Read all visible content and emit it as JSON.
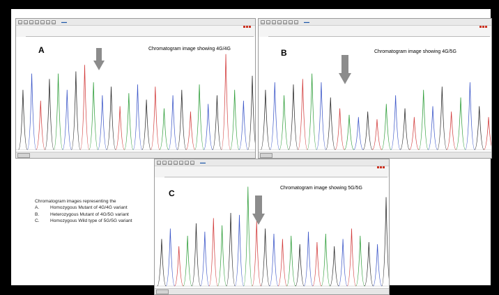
{
  "caption": {
    "intro": "Chromatogram images representing the",
    "items": [
      {
        "num": "A.",
        "text": "Homozygous Mutant of 4G/4G variant"
      },
      {
        "num": "B.",
        "text": "Heterozygous Mutant of 4G/5G variant"
      },
      {
        "num": "C.",
        "text": "Homozygous Wild type of 5G/5G variant"
      }
    ]
  },
  "panels": [
    {
      "id": "a",
      "letter": "A",
      "title": "Chromatogram image showing 4G/4G",
      "trace_colors": [
        "#2a2a2a",
        "#2f9e3a",
        "#3b56c8",
        "#d23b3b"
      ],
      "peaks": [
        [
          0,
          0.55,
          0
        ],
        [
          1,
          0.7,
          2
        ],
        [
          2,
          0.45,
          3
        ],
        [
          3,
          0.65,
          0
        ],
        [
          4,
          0.7,
          1
        ],
        [
          5,
          0.55,
          2
        ],
        [
          6,
          0.72,
          0
        ],
        [
          7,
          0.78,
          3
        ],
        [
          8,
          0.62,
          1
        ],
        [
          9,
          0.5,
          2
        ],
        [
          10,
          0.58,
          0
        ],
        [
          11,
          0.4,
          3
        ],
        [
          12,
          0.52,
          1
        ],
        [
          13,
          0.6,
          2
        ],
        [
          14,
          0.46,
          0
        ],
        [
          15,
          0.58,
          3
        ],
        [
          16,
          0.38,
          1
        ],
        [
          17,
          0.5,
          2
        ],
        [
          18,
          0.55,
          0
        ],
        [
          19,
          0.35,
          3
        ],
        [
          20,
          0.6,
          1
        ],
        [
          21,
          0.42,
          2
        ],
        [
          22,
          0.5,
          0
        ],
        [
          23,
          0.88,
          3
        ],
        [
          24,
          0.55,
          1
        ],
        [
          25,
          0.45,
          2
        ],
        [
          26,
          0.68,
          0
        ]
      ]
    },
    {
      "id": "b",
      "letter": "B",
      "title": "Chromatogram image showing 4G/5G",
      "trace_colors": [
        "#2a2a2a",
        "#2f9e3a",
        "#3b56c8",
        "#d23b3b"
      ],
      "peaks": [
        [
          0,
          0.55,
          0
        ],
        [
          1,
          0.62,
          2
        ],
        [
          2,
          0.5,
          1
        ],
        [
          3,
          0.6,
          0
        ],
        [
          4,
          0.65,
          3
        ],
        [
          5,
          0.7,
          1
        ],
        [
          6,
          0.62,
          2
        ],
        [
          7,
          0.48,
          0
        ],
        [
          8,
          0.38,
          3
        ],
        [
          9,
          0.32,
          1
        ],
        [
          10,
          0.3,
          2
        ],
        [
          11,
          0.35,
          0
        ],
        [
          12,
          0.28,
          3
        ],
        [
          13,
          0.42,
          1
        ],
        [
          14,
          0.5,
          2
        ],
        [
          15,
          0.38,
          0
        ],
        [
          16,
          0.3,
          3
        ],
        [
          17,
          0.55,
          1
        ],
        [
          18,
          0.4,
          2
        ],
        [
          19,
          0.58,
          0
        ],
        [
          20,
          0.35,
          3
        ],
        [
          21,
          0.48,
          1
        ],
        [
          22,
          0.62,
          2
        ],
        [
          23,
          0.4,
          0
        ],
        [
          24,
          0.3,
          3
        ]
      ]
    },
    {
      "id": "c",
      "letter": "C",
      "title": "Chromatogram image showing 5G/5G",
      "trace_colors": [
        "#2a2a2a",
        "#2f9e3a",
        "#3b56c8",
        "#d23b3b"
      ],
      "peaks": [
        [
          0,
          0.45,
          0
        ],
        [
          1,
          0.55,
          2
        ],
        [
          2,
          0.38,
          3
        ],
        [
          3,
          0.48,
          1
        ],
        [
          4,
          0.6,
          0
        ],
        [
          5,
          0.52,
          2
        ],
        [
          6,
          0.65,
          3
        ],
        [
          7,
          0.58,
          1
        ],
        [
          8,
          0.7,
          0
        ],
        [
          9,
          0.68,
          2
        ],
        [
          10,
          0.95,
          1
        ],
        [
          11,
          0.62,
          3
        ],
        [
          12,
          0.55,
          0
        ],
        [
          13,
          0.5,
          2
        ],
        [
          14,
          0.45,
          3
        ],
        [
          15,
          0.48,
          1
        ],
        [
          16,
          0.4,
          0
        ],
        [
          17,
          0.52,
          2
        ],
        [
          18,
          0.42,
          3
        ],
        [
          19,
          0.5,
          1
        ],
        [
          20,
          0.38,
          0
        ],
        [
          21,
          0.45,
          2
        ],
        [
          22,
          0.55,
          3
        ],
        [
          23,
          0.48,
          1
        ],
        [
          24,
          0.42,
          0
        ],
        [
          25,
          0.4,
          2
        ],
        [
          26,
          0.85,
          0
        ]
      ]
    }
  ]
}
